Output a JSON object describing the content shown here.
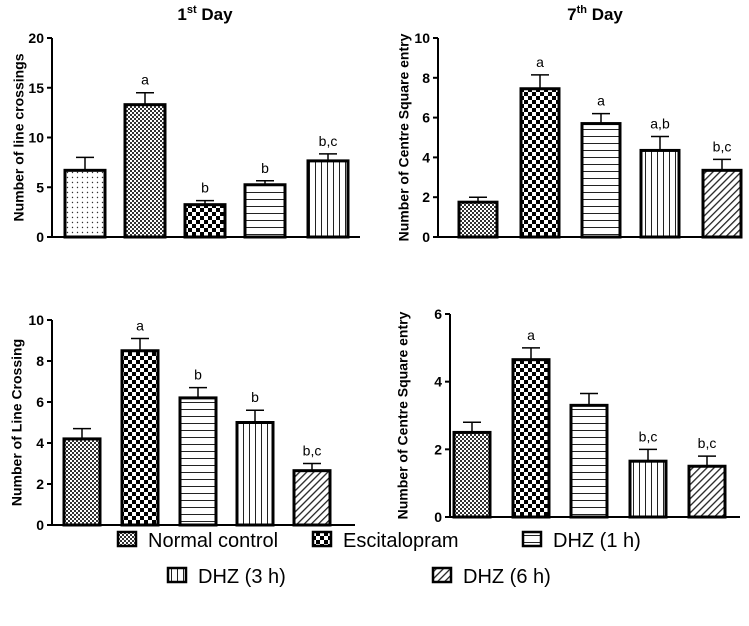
{
  "chart_data": [
    {
      "type": "bar",
      "title": "1st Day",
      "title_main": "1",
      "title_sup": "st",
      "title_rest": " Day",
      "ylabel": "Number of line crossings",
      "ylim": [
        0,
        20
      ],
      "yticks": [
        0,
        5,
        10,
        15,
        20
      ],
      "categories": [
        "Normal control",
        "Escitalopram",
        "DHZ (1 h)",
        "DHZ (3 h)",
        "DHZ (6 h)"
      ],
      "patterns": [
        "dots",
        "fine-check",
        "large-check",
        "horizontal",
        "vertical"
      ],
      "values": [
        6.7,
        13.3,
        3.25,
        5.25,
        7.65
      ],
      "errors": [
        1.3,
        1.2,
        0.4,
        0.4,
        0.7
      ],
      "labels": [
        "",
        "a",
        "b",
        "b",
        "b,c"
      ]
    },
    {
      "type": "bar",
      "title": "7th Day",
      "title_main": "7",
      "title_sup": "th",
      "title_rest": " Day",
      "ylabel": "Number of Centre Square entry",
      "ylim": [
        0,
        10
      ],
      "yticks": [
        0,
        2,
        4,
        6,
        8,
        10
      ],
      "categories": [
        "Normal control",
        "Escitalopram",
        "DHZ (1 h)",
        "DHZ (3 h)",
        "DHZ (6 h)"
      ],
      "patterns": [
        "fine-check",
        "large-check",
        "horizontal",
        "vertical",
        "diagonal"
      ],
      "values": [
        1.75,
        7.45,
        5.7,
        4.35,
        3.35
      ],
      "errors": [
        0.25,
        0.7,
        0.5,
        0.7,
        0.55
      ],
      "labels": [
        "",
        "a",
        "a",
        "a,b",
        "b,c"
      ]
    },
    {
      "type": "bar",
      "title": "",
      "ylabel": "Number of Line Crossing",
      "ylim": [
        0,
        10
      ],
      "yticks": [
        0,
        2,
        4,
        6,
        8,
        10
      ],
      "categories": [
        "Normal control",
        "Escitalopram",
        "DHZ (1 h)",
        "DHZ (3 h)",
        "DHZ (6 h)"
      ],
      "patterns": [
        "fine-check",
        "large-check",
        "horizontal",
        "vertical",
        "diagonal"
      ],
      "values": [
        4.2,
        8.5,
        6.2,
        5.0,
        2.65
      ],
      "errors": [
        0.5,
        0.6,
        0.5,
        0.6,
        0.35
      ],
      "labels": [
        "",
        "a",
        "b",
        "b",
        "b,c"
      ]
    },
    {
      "type": "bar",
      "title": "",
      "ylabel": "Number of Centre Square entry",
      "ylim": [
        0,
        6
      ],
      "yticks": [
        0,
        2,
        4,
        6
      ],
      "categories": [
        "Normal control",
        "Escitalopram",
        "DHZ (1 h)",
        "DHZ (3 h)",
        "DHZ (6 h)"
      ],
      "patterns": [
        "fine-check",
        "large-check",
        "horizontal",
        "vertical",
        "diagonal"
      ],
      "values": [
        2.5,
        4.65,
        3.3,
        1.65,
        1.5
      ],
      "errors": [
        0.3,
        0.35,
        0.35,
        0.35,
        0.3
      ],
      "labels": [
        "",
        "a",
        "",
        "b,c",
        "b,c"
      ]
    }
  ],
  "legend": [
    {
      "label": "Normal control",
      "pattern": "fine-check"
    },
    {
      "label": "Escitalopram",
      "pattern": "large-check"
    },
    {
      "label": "DHZ (1 h)",
      "pattern": "horizontal"
    },
    {
      "label": "DHZ (3 h)",
      "pattern": "vertical"
    },
    {
      "label": "DHZ (6 h)",
      "pattern": "diagonal"
    }
  ]
}
